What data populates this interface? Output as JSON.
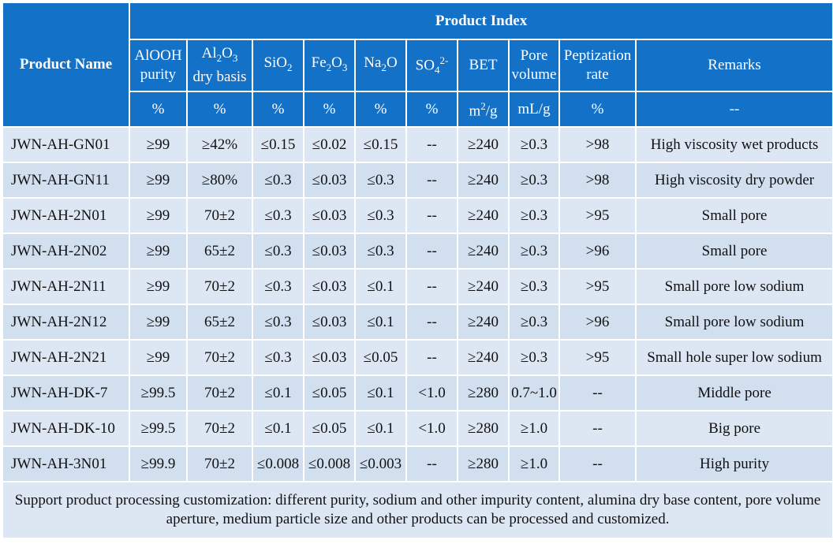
{
  "header": {
    "product_name": "Product Name",
    "product_index": "Product Index",
    "columns": [
      {
        "label_a": "AlOOH",
        "label_b": "purity",
        "unit": "%"
      },
      {
        "label_pre": "Al",
        "sub1": "2",
        "label_mid": "O",
        "sub2": "3",
        "label_b": "dry basis",
        "unit": "%"
      },
      {
        "label_pre": "SiO",
        "sub1": "2",
        "unit": "%"
      },
      {
        "label_pre": "Fe",
        "sub1": "2",
        "label_mid": "O",
        "sub2": "3",
        "unit": "%"
      },
      {
        "label_pre": "Na",
        "sub1": "2",
        "label_mid": "O",
        "unit": "%"
      },
      {
        "label_pre": "SO",
        "sub1": "4",
        "sup": "2-",
        "unit": "%"
      },
      {
        "label_a": "BET",
        "unit_pre": "m",
        "unit_sup": "2",
        "unit_post": "/g"
      },
      {
        "label_a": "Pore",
        "label_b": "volume",
        "unit": "mL/g"
      },
      {
        "label_a": "Peptization",
        "label_b": "rate",
        "unit": "%"
      },
      {
        "label_a": "Remarks",
        "unit": "--"
      }
    ]
  },
  "rows": [
    {
      "name": "JWN-AH-GN01",
      "cells": [
        "≥99",
        "≥42%",
        "≤0.15",
        "≤0.02",
        "≤0.15",
        "--",
        "≥240",
        "≥0.3",
        ">98",
        "High viscosity wet products"
      ]
    },
    {
      "name": "JWN-AH-GN11",
      "cells": [
        "≥99",
        "≥80%",
        "≤0.3",
        "≤0.03",
        "≤0.3",
        "--",
        "≥240",
        "≥0.3",
        ">98",
        "High viscosity dry powder"
      ]
    },
    {
      "name": "JWN-AH-2N01",
      "cells": [
        "≥99",
        "70±2",
        "≤0.3",
        "≤0.03",
        "≤0.3",
        "--",
        "≥240",
        "≥0.3",
        ">95",
        "Small pore"
      ]
    },
    {
      "name": "JWN-AH-2N02",
      "cells": [
        "≥99",
        "65±2",
        "≤0.3",
        "≤0.03",
        "≤0.3",
        "--",
        "≥240",
        "≥0.3",
        ">96",
        "Small pore"
      ]
    },
    {
      "name": "JWN-AH-2N11",
      "cells": [
        "≥99",
        "70±2",
        "≤0.3",
        "≤0.03",
        "≤0.1",
        "--",
        "≥240",
        "≥0.3",
        ">95",
        "Small pore low sodium"
      ]
    },
    {
      "name": "JWN-AH-2N12",
      "cells": [
        "≥99",
        "65±2",
        "≤0.3",
        "≤0.03",
        "≤0.1",
        "--",
        "≥240",
        "≥0.3",
        ">96",
        "Small pore low sodium"
      ]
    },
    {
      "name": "JWN-AH-2N21",
      "cells": [
        "≥99",
        "70±2",
        "≤0.3",
        "≤0.03",
        "≤0.05",
        "--",
        "≥240",
        "≥0.3",
        ">95",
        "Small hole super low sodium"
      ]
    },
    {
      "name": "JWN-AH-DK-7",
      "cells": [
        "≥99.5",
        "70±2",
        "≤0.1",
        "≤0.05",
        "≤0.1",
        "<1.0",
        "≥280",
        "0.7~1.0",
        "--",
        "Middle pore"
      ]
    },
    {
      "name": "JWN-AH-DK-10",
      "cells": [
        "≥99.5",
        "70±2",
        "≤0.1",
        "≤0.05",
        "≤0.1",
        "<1.0",
        "≥280",
        "≥1.0",
        "--",
        "Big pore"
      ]
    },
    {
      "name": "JWN-AH-3N01",
      "cells": [
        "≥99.9",
        "70±2",
        "≤0.008",
        "≤0.008",
        "≤0.003",
        "--",
        "≥280",
        "≥1.0",
        "--",
        "High purity"
      ]
    }
  ],
  "footer": {
    "note": "Support product processing customization: different purity, sodium and other impurity content, alumina dry base content, pore volume aperture, medium particle size and other products can be processed and customized."
  },
  "colors": {
    "header_bg": "#1471c8",
    "row_bg": "#dde7f4",
    "row_bg_alt": "#d2dfef"
  }
}
